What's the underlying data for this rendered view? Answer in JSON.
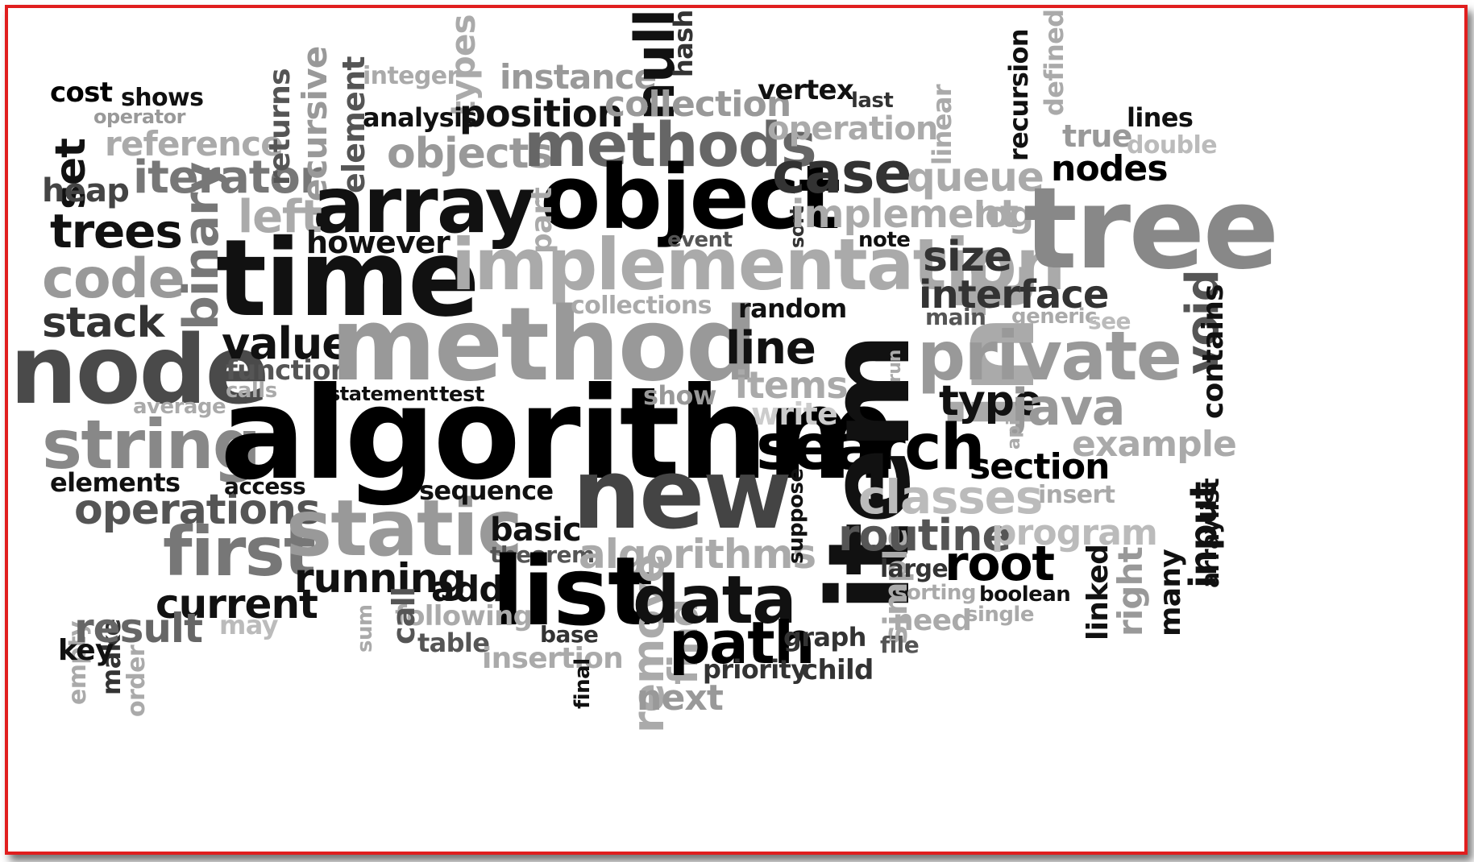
{
  "words": [
    {
      "text": "cost",
      "color": "#000000"
    },
    {
      "text": "shows",
      "color": "#111111"
    },
    {
      "text": "operator",
      "color": "#999999"
    },
    {
      "text": "set",
      "color": "#111111"
    },
    {
      "text": "reference",
      "color": "#aaaaaa"
    },
    {
      "text": "heap",
      "color": "#444444"
    },
    {
      "text": "iterator",
      "color": "#777777"
    },
    {
      "text": "trees",
      "color": "#111111"
    },
    {
      "text": "code",
      "color": "#999999"
    },
    {
      "text": "stack",
      "color": "#333333"
    },
    {
      "text": "node",
      "color": "#4a4a4a"
    },
    {
      "text": "string",
      "color": "#888888"
    },
    {
      "text": "average",
      "color": "#aaaaaa"
    },
    {
      "text": "calls",
      "color": "#aaaaaa"
    },
    {
      "text": "elements",
      "color": "#111111"
    },
    {
      "text": "operations",
      "color": "#555555"
    },
    {
      "text": "access",
      "color": "#111111"
    },
    {
      "text": "empty",
      "color": "#aaaaaa"
    },
    {
      "text": "make",
      "color": "#333333"
    },
    {
      "text": "order",
      "color": "#aaaaaa"
    },
    {
      "text": "first",
      "color": "#777777"
    },
    {
      "text": "current",
      "color": "#111111"
    },
    {
      "text": "result",
      "color": "#666666"
    },
    {
      "text": "may",
      "color": "#bbbbbb"
    },
    {
      "text": "key",
      "color": "#111111"
    },
    {
      "text": "returns",
      "color": "#555555"
    },
    {
      "text": "recursive",
      "color": "#999999"
    },
    {
      "text": "element",
      "color": "#555555"
    },
    {
      "text": "integer",
      "color": "#aaaaaa"
    },
    {
      "text": "types",
      "color": "#aaaaaa"
    },
    {
      "text": "analysis",
      "color": "#111111"
    },
    {
      "text": "position",
      "color": "#111111"
    },
    {
      "text": "objects",
      "color": "#999999"
    },
    {
      "text": "instance",
      "color": "#999999"
    },
    {
      "text": "null",
      "color": "#111111"
    },
    {
      "text": "hash",
      "color": "#333333"
    },
    {
      "text": "collection",
      "color": "#999999"
    },
    {
      "text": "methods",
      "color": "#666666"
    },
    {
      "text": "array",
      "color": "#111111"
    },
    {
      "text": "object",
      "color": "#000000"
    },
    {
      "text": "binary",
      "color": "#777777"
    },
    {
      "text": "left",
      "color": "#aaaaaa"
    },
    {
      "text": "however",
      "color": "#111111"
    },
    {
      "text": "part",
      "color": "#aaaaaa"
    },
    {
      "text": "time",
      "color": "#111111"
    },
    {
      "text": "implementation",
      "color": "#aaaaaa"
    },
    {
      "text": "value",
      "color": "#111111"
    },
    {
      "text": "function",
      "color": "#555555"
    },
    {
      "text": "method",
      "color": "#999999"
    },
    {
      "text": "collections",
      "color": "#aaaaaa"
    },
    {
      "text": "statement",
      "color": "#111111"
    },
    {
      "text": "test",
      "color": "#111111"
    },
    {
      "text": "algorithm",
      "color": "#000000"
    },
    {
      "text": "static",
      "color": "#999999"
    },
    {
      "text": "sequence",
      "color": "#111111"
    },
    {
      "text": "running",
      "color": "#111111"
    },
    {
      "text": "basic",
      "color": "#111111"
    },
    {
      "text": "theorem",
      "color": "#555555"
    },
    {
      "text": "algorithms",
      "color": "#aaaaaa"
    },
    {
      "text": "add",
      "color": "#111111"
    },
    {
      "text": "list",
      "color": "#000000"
    },
    {
      "text": "following",
      "color": "#aaaaaa"
    },
    {
      "text": "call",
      "color": "#555555"
    },
    {
      "text": "sum",
      "color": "#aaaaaa"
    },
    {
      "text": "table",
      "color": "#555555"
    },
    {
      "text": "base",
      "color": "#333333"
    },
    {
      "text": "insertion",
      "color": "#aaaaaa"
    },
    {
      "text": "final",
      "color": "#111111"
    },
    {
      "text": "remove",
      "color": "#aaaaaa"
    },
    {
      "text": "find",
      "color": "#aaaaaa"
    },
    {
      "text": "next",
      "color": "#999999"
    },
    {
      "text": "data",
      "color": "#111111"
    },
    {
      "text": "path",
      "color": "#000000"
    },
    {
      "text": "priority",
      "color": "#333333"
    },
    {
      "text": "new",
      "color": "#444444"
    },
    {
      "text": "show",
      "color": "#999999"
    },
    {
      "text": "items",
      "color": "#aaaaaa"
    },
    {
      "text": "write",
      "color": "#cccccc"
    },
    {
      "text": "line",
      "color": "#111111"
    },
    {
      "text": "random",
      "color": "#111111"
    },
    {
      "text": "event",
      "color": "#555555"
    },
    {
      "text": "note",
      "color": "#111111"
    },
    {
      "text": "sort",
      "color": "#333333"
    },
    {
      "text": "vertex",
      "color": "#111111"
    },
    {
      "text": "last",
      "color": "#333333"
    },
    {
      "text": "operation",
      "color": "#aaaaaa"
    },
    {
      "text": "case",
      "color": "#333333"
    },
    {
      "text": "implement",
      "color": "#aaaaaa"
    },
    {
      "text": "log",
      "color": "#aaaaaa"
    },
    {
      "text": "int",
      "color": "#aaaaaa"
    },
    {
      "text": "search",
      "color": "#000000"
    },
    {
      "text": "item",
      "color": "#111111"
    },
    {
      "text": "suppose",
      "color": "#111111"
    },
    {
      "text": "simple",
      "color": "#aaaaaa"
    },
    {
      "text": "graph",
      "color": "#333333"
    },
    {
      "text": "child",
      "color": "#333333"
    },
    {
      "text": "file",
      "color": "#555555"
    },
    {
      "text": "need",
      "color": "#aaaaaa"
    },
    {
      "text": "sorting",
      "color": "#aaaaaa"
    },
    {
      "text": "large",
      "color": "#333333"
    },
    {
      "text": "routine",
      "color": "#555555"
    },
    {
      "text": "classes",
      "color": "#bbbbbb"
    },
    {
      "text": "root",
      "color": "#000000"
    },
    {
      "text": "linear",
      "color": "#aaaaaa"
    },
    {
      "text": "recursion",
      "color": "#111111"
    },
    {
      "text": "defined",
      "color": "#aaaaaa"
    },
    {
      "text": "queue",
      "color": "#aaaaaa"
    },
    {
      "text": "true",
      "color": "#999999"
    },
    {
      "text": "double",
      "color": "#bbbbbb"
    },
    {
      "text": "lines",
      "color": "#111111"
    },
    {
      "text": "nodes",
      "color": "#000000"
    },
    {
      "text": "tree",
      "color": "#888888"
    },
    {
      "text": "size",
      "color": "#333333"
    },
    {
      "text": "interface",
      "color": "#333333"
    },
    {
      "text": "main",
      "color": "#555555"
    },
    {
      "text": "generic",
      "color": "#aaaaaa"
    },
    {
      "text": "see",
      "color": "#bbbbbb"
    },
    {
      "text": "void",
      "color": "#555555"
    },
    {
      "text": "private",
      "color": "#999999"
    },
    {
      "text": "contains",
      "color": "#111111"
    },
    {
      "text": "run",
      "color": "#aaaaaa"
    },
    {
      "text": "type",
      "color": "#111111"
    },
    {
      "text": "java",
      "color": "#999999"
    },
    {
      "text": "api",
      "color": "#aaaaaa"
    },
    {
      "text": "example",
      "color": "#aaaaaa"
    },
    {
      "text": "section",
      "color": "#000000"
    },
    {
      "text": "insert",
      "color": "#aaaaaa"
    },
    {
      "text": "program",
      "color": "#bbbbbb"
    },
    {
      "text": "many",
      "color": "#111111"
    },
    {
      "text": "input",
      "color": "#111111"
    },
    {
      "text": "arraylist",
      "color": "#111111"
    },
    {
      "text": "boolean",
      "color": "#111111"
    },
    {
      "text": "single",
      "color": "#aaaaaa"
    },
    {
      "text": "linked",
      "color": "#111111"
    },
    {
      "text": "right",
      "color": "#999999"
    }
  ]
}
